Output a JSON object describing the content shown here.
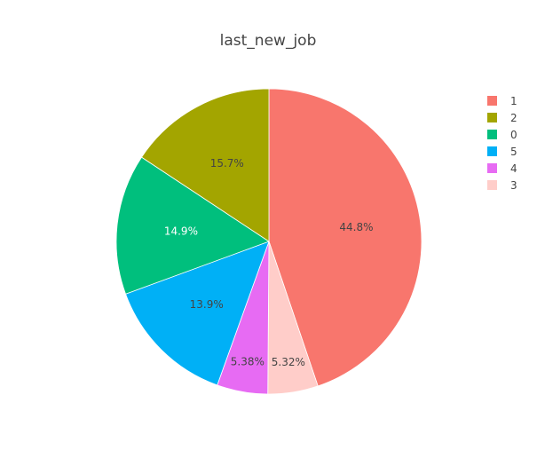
{
  "chart_data": {
    "type": "pie",
    "title": "last_new_job",
    "slices": [
      {
        "label": "1",
        "value": 44.8,
        "display": "44.8%",
        "color": "#F8766D",
        "text_color": "#444444"
      },
      {
        "label": "3",
        "value": 5.32,
        "display": "5.32%",
        "color": "#FFCDC9",
        "text_color": "#444444"
      },
      {
        "label": "4",
        "value": 5.38,
        "display": "5.38%",
        "color": "#E76BF3",
        "text_color": "#444444"
      },
      {
        "label": "5",
        "value": 13.9,
        "display": "13.9%",
        "color": "#00B0F6",
        "text_color": "#444444"
      },
      {
        "label": "0",
        "value": 14.9,
        "display": "14.9%",
        "color": "#00BF7D",
        "text_color": "#ffffff"
      },
      {
        "label": "2",
        "value": 15.7,
        "display": "15.7%",
        "color": "#A3A500",
        "text_color": "#444444"
      }
    ],
    "legend": {
      "placement": "top-right",
      "order": [
        "1",
        "2",
        "0",
        "5",
        "4",
        "3"
      ]
    },
    "direction": "clockwise",
    "start": "top"
  }
}
